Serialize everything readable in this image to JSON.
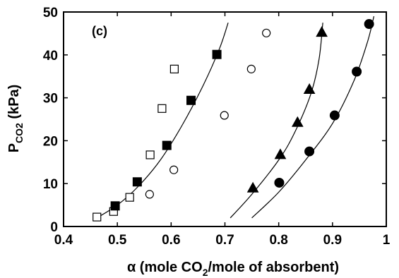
{
  "chart_data": {
    "type": "scatter",
    "panel_label": "(c)",
    "xlabel": "α (mole CO2/mole of absorbent)",
    "ylabel": "PCO2 (kPa)",
    "xlim": [
      0.4,
      1.0
    ],
    "ylim": [
      0,
      50
    ],
    "x_ticks": [
      0.4,
      0.5,
      0.6,
      0.7,
      0.8,
      0.9,
      1.0
    ],
    "x_tick_labels": [
      "0.4",
      "0.5",
      "0.6",
      "0.7",
      "0.8",
      "0.9",
      "1"
    ],
    "y_ticks": [
      0,
      10,
      20,
      30,
      40,
      50
    ],
    "y_tick_labels": [
      "0",
      "10",
      "20",
      "30",
      "40",
      "50"
    ],
    "grid": false,
    "series": [
      {
        "marker": "square-open",
        "points": [
          [
            0.462,
            2.2
          ],
          [
            0.493,
            3.5
          ],
          [
            0.523,
            6.8
          ],
          [
            0.561,
            16.7
          ],
          [
            0.583,
            27.5
          ],
          [
            0.606,
            36.7
          ]
        ]
      },
      {
        "marker": "square-filled",
        "points": [
          [
            0.496,
            4.8
          ],
          [
            0.537,
            10.4
          ],
          [
            0.592,
            18.9
          ],
          [
            0.637,
            29.4
          ],
          [
            0.685,
            40.1
          ]
        ]
      },
      {
        "marker": "circle-open",
        "points": [
          [
            0.56,
            7.5
          ],
          [
            0.605,
            13.2
          ],
          [
            0.699,
            25.9
          ],
          [
            0.749,
            36.7
          ],
          [
            0.777,
            45.1
          ]
        ]
      },
      {
        "marker": "triangle-filled",
        "points": [
          [
            0.752,
            9.0
          ],
          [
            0.803,
            16.8
          ],
          [
            0.835,
            24.3
          ],
          [
            0.857,
            32.0
          ],
          [
            0.88,
            45.3
          ]
        ]
      },
      {
        "marker": "circle-filled",
        "points": [
          [
            0.801,
            10.2
          ],
          [
            0.857,
            17.5
          ],
          [
            0.904,
            25.9
          ],
          [
            0.945,
            36.1
          ],
          [
            0.968,
            47.2
          ]
        ]
      }
    ],
    "fit_curves": [
      {
        "points": [
          [
            0.455,
            1.5
          ],
          [
            0.5,
            5.0
          ],
          [
            0.54,
            9.5
          ],
          [
            0.58,
            15.5
          ],
          [
            0.62,
            23.5
          ],
          [
            0.66,
            33.0
          ],
          [
            0.69,
            41.5
          ],
          [
            0.706,
            47.5
          ]
        ]
      },
      {
        "points": [
          [
            0.71,
            2.0
          ],
          [
            0.75,
            7.5
          ],
          [
            0.8,
            15.5
          ],
          [
            0.83,
            22.0
          ],
          [
            0.86,
            31.0
          ],
          [
            0.875,
            39.0
          ],
          [
            0.882,
            47.5
          ]
        ]
      },
      {
        "points": [
          [
            0.75,
            2.0
          ],
          [
            0.8,
            8.0
          ],
          [
            0.85,
            15.5
          ],
          [
            0.9,
            24.0
          ],
          [
            0.94,
            34.0
          ],
          [
            0.965,
            43.0
          ],
          [
            0.977,
            49.0
          ]
        ]
      }
    ],
    "colors": {
      "marker": "#000000",
      "curve": "#000000",
      "background": "#ffffff"
    }
  }
}
